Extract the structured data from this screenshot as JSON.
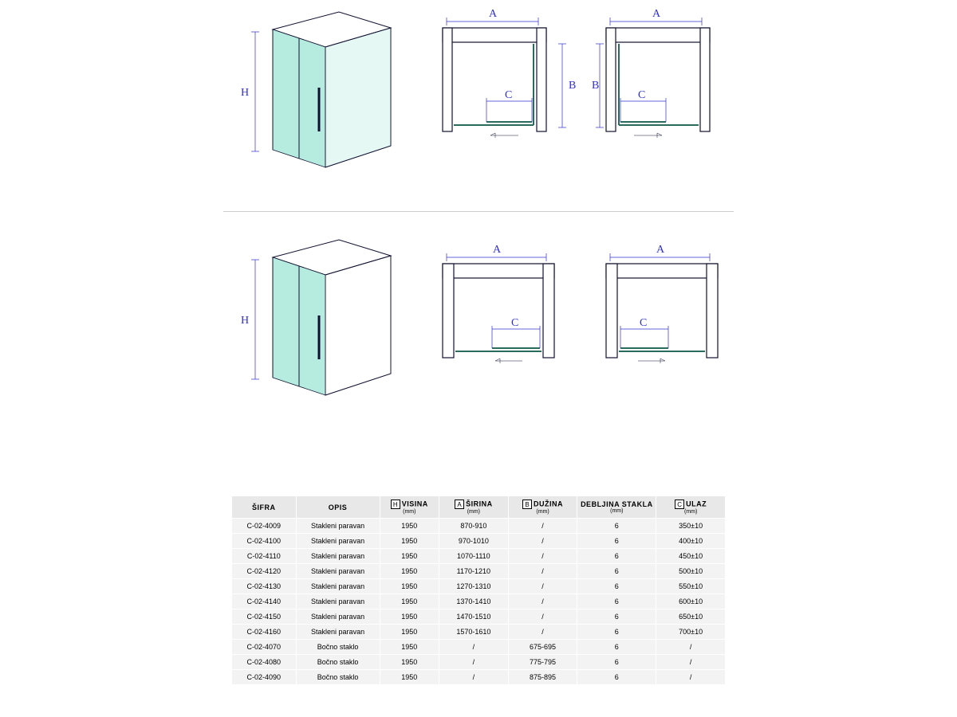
{
  "colors": {
    "dim_line": "#3030cc",
    "outline": "#101030",
    "glass_fill": "#b6ecdf",
    "track": "#2a6b5c",
    "wall_fill": "#ffffff",
    "hatch": "#101030",
    "table_header_bg": "#e8e8e8",
    "table_row_bg": "#f3f3f3",
    "background": "#ffffff"
  },
  "dim_labels": {
    "H": "H",
    "A": "A",
    "B": "B",
    "C": "C"
  },
  "table": {
    "columns": [
      {
        "header_main": "ŠIFRA",
        "header_sub": "",
        "box": "",
        "width": "13%"
      },
      {
        "header_main": "OPIS",
        "header_sub": "",
        "box": "",
        "width": "17%"
      },
      {
        "header_main": "VISINA",
        "header_sub": "(mm)",
        "box": "H",
        "width": "12%"
      },
      {
        "header_main": "ŠIRINA",
        "header_sub": "(mm)",
        "box": "A",
        "width": "14%"
      },
      {
        "header_main": "DUŽINA",
        "header_sub": "(mm)",
        "box": "B",
        "width": "14%"
      },
      {
        "header_main": "DEBLJINA STAKLA",
        "header_sub": "(mm)",
        "box": "",
        "width": "16%"
      },
      {
        "header_main": "ULAZ",
        "header_sub": "(mm)",
        "box": "C",
        "width": "14%"
      }
    ],
    "rows": [
      [
        "C-02-4009",
        "Stakleni paravan",
        "1950",
        "870-910",
        "/",
        "6",
        "350±10"
      ],
      [
        "C-02-4100",
        "Stakleni paravan",
        "1950",
        "970-1010",
        "/",
        "6",
        "400±10"
      ],
      [
        "C-02-4110",
        "Stakleni paravan",
        "1950",
        "1070-1110",
        "/",
        "6",
        "450±10"
      ],
      [
        "C-02-4120",
        "Stakleni paravan",
        "1950",
        "1170-1210",
        "/",
        "6",
        "500±10"
      ],
      [
        "C-02-4130",
        "Stakleni paravan",
        "1950",
        "1270-1310",
        "/",
        "6",
        "550±10"
      ],
      [
        "C-02-4140",
        "Stakleni paravan",
        "1950",
        "1370-1410",
        "/",
        "6",
        "600±10"
      ],
      [
        "C-02-4150",
        "Stakleni paravan",
        "1950",
        "1470-1510",
        "/",
        "6",
        "650±10"
      ],
      [
        "C-02-4160",
        "Stakleni paravan",
        "1950",
        "1570-1610",
        "/",
        "6",
        "700±10"
      ],
      [
        "C-02-4070",
        "Bočno staklo",
        "1950",
        "/",
        "675-695",
        "6",
        "/"
      ],
      [
        "C-02-4080",
        "Bočno staklo",
        "1950",
        "/",
        "775-795",
        "6",
        "/"
      ],
      [
        "C-02-4090",
        "Bočno staklo",
        "1950",
        "/",
        "875-895",
        "6",
        "/"
      ]
    ]
  }
}
